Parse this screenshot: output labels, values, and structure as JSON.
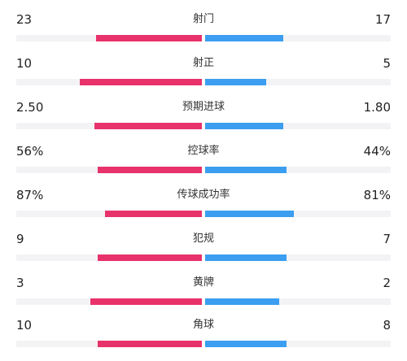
{
  "colors": {
    "home": "#e8326b",
    "away": "#3b9ef0",
    "track": "#f3f3f5"
  },
  "stats": [
    {
      "label": "射门",
      "home": "23",
      "away": "17",
      "home_fill": 0.57,
      "away_fill": 0.42
    },
    {
      "label": "射正",
      "home": "10",
      "away": "5",
      "home_fill": 0.66,
      "away_fill": 0.33
    },
    {
      "label": "预期进球",
      "home": "2.50",
      "away": "1.80",
      "home_fill": 0.58,
      "away_fill": 0.42
    },
    {
      "label": "控球率",
      "home": "56%",
      "away": "44%",
      "home_fill": 0.56,
      "away_fill": 0.44
    },
    {
      "label": "传球成功率",
      "home": "87%",
      "away": "81%",
      "home_fill": 0.52,
      "away_fill": 0.48
    },
    {
      "label": "犯规",
      "home": "9",
      "away": "7",
      "home_fill": 0.56,
      "away_fill": 0.44
    },
    {
      "label": "黄牌",
      "home": "3",
      "away": "2",
      "home_fill": 0.6,
      "away_fill": 0.4
    },
    {
      "label": "角球",
      "home": "10",
      "away": "8",
      "home_fill": 0.56,
      "away_fill": 0.44
    }
  ]
}
